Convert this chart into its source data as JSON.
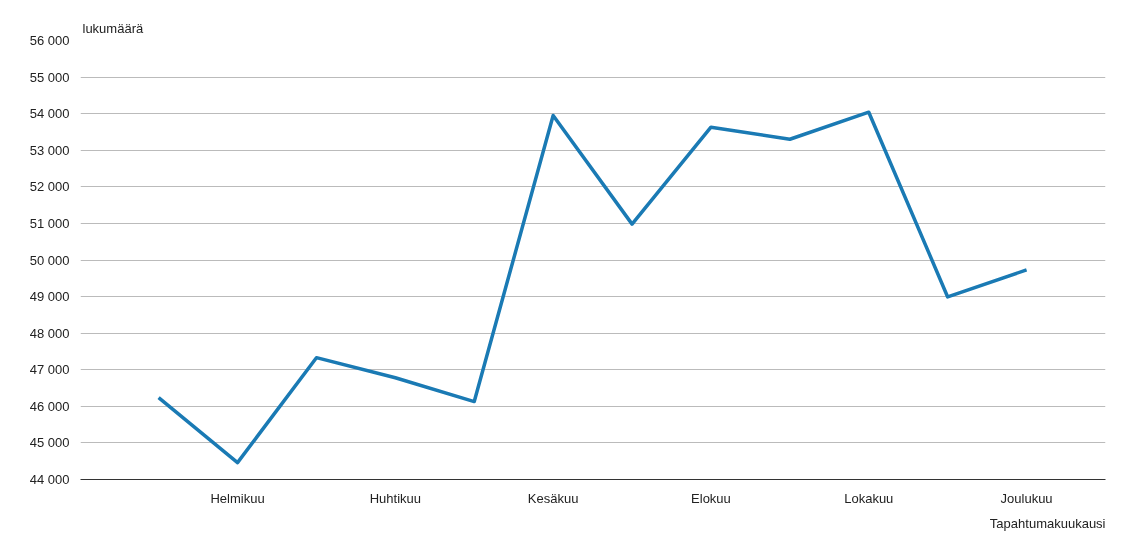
{
  "chart_data": {
    "type": "line",
    "ylabel": "lukumäärä",
    "xlabel": "Tapahtumakuukausi",
    "categories": [
      null,
      "Helmikuu",
      null,
      "Huhtikuu",
      null,
      "Kesäkuu",
      null,
      "Elokuu",
      null,
      "Lokakuu",
      null,
      "Joulukuu"
    ],
    "series": [
      {
        "color": "#1a7ab4",
        "values": [
          46240,
          44460,
          47330,
          46780,
          46130,
          53950,
          50980,
          53630,
          53300,
          54040,
          48990,
          49730
        ]
      }
    ],
    "ylim": [
      44000,
      56000
    ],
    "yticks": [
      {
        "value": 44000,
        "label": "44 000"
      },
      {
        "value": 45000,
        "label": "45 000"
      },
      {
        "value": 46000,
        "label": "46 000"
      },
      {
        "value": 47000,
        "label": "47 000"
      },
      {
        "value": 48000,
        "label": "48 000"
      },
      {
        "value": 49000,
        "label": "49 000"
      },
      {
        "value": 50000,
        "label": "50 000"
      },
      {
        "value": 51000,
        "label": "51 000"
      },
      {
        "value": 52000,
        "label": "52 000"
      },
      {
        "value": 53000,
        "label": "53 000"
      },
      {
        "value": 54000,
        "label": "54 000"
      },
      {
        "value": 55000,
        "label": "55 000"
      },
      {
        "value": 56000,
        "label": "56 000"
      }
    ],
    "grid": "y",
    "marker": "none",
    "line_style": "solid"
  }
}
